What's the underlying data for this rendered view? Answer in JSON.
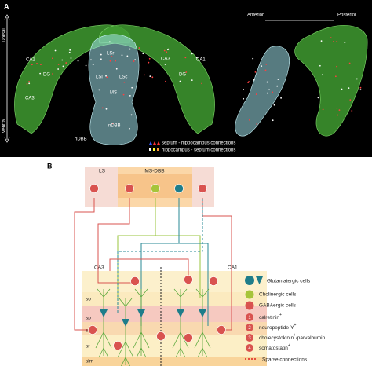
{
  "panel_a": {
    "label": "A",
    "dorsal": "Dorsal",
    "ventral": "Ventral",
    "anterior": "Anterior",
    "posterior": "Posterior",
    "regions": [
      "CA1",
      "CA3",
      "DG",
      "LSr",
      "LSi",
      "LSc",
      "MS",
      "hDBB",
      "nDBB",
      "CA1",
      "CA3",
      "DG"
    ],
    "legend": [
      "septum - hippocampus connections",
      "hippocampus - septum connections"
    ]
  },
  "panel_b": {
    "label": "B",
    "septum_boxes": [
      "LS",
      "MS-DBB"
    ],
    "hippocampus": [
      "CA3",
      "CA1"
    ],
    "layers": [
      "so",
      "sp",
      "si",
      "sr",
      "slm"
    ],
    "legend": {
      "cell_types": [
        "Glutamatergic cells",
        "Cholinergic cells",
        "GABAergic cells"
      ],
      "markers": [
        {
          "number": "1",
          "name": "calretinin",
          "sup": "+"
        },
        {
          "number": "2",
          "name": "neuropeptide-Y",
          "sup": "+"
        },
        {
          "number": "3",
          "name": "cholecystokinin",
          "sup": "+",
          "name2": "/parvalbumin",
          "sup2": "+"
        },
        {
          "number": "4",
          "name": "somatostatin",
          "sup": "+"
        }
      ],
      "sparse": "Sparse connections"
    }
  }
}
